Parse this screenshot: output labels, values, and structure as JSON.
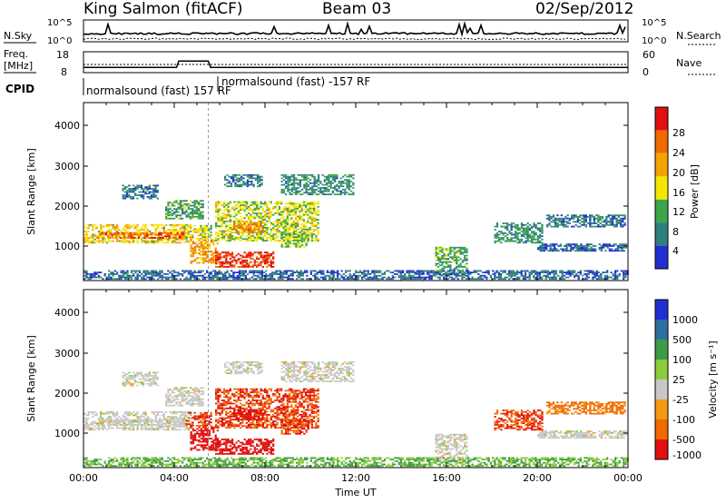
{
  "header": {
    "station": "King Salmon (fitACF)",
    "beam": "Beam 03",
    "date": "02/Sep/2012"
  },
  "noise_panel": {
    "left_label": "N.Sky",
    "right_label": "N.Search",
    "left_ticks": [
      "10^5",
      "10^0"
    ],
    "right_ticks": [
      "10^5",
      "10^0"
    ]
  },
  "freq_panel": {
    "left_label_1": "Freq.",
    "left_label_2": "[MHz]",
    "right_label": "Nave",
    "left_ticks": [
      "18",
      "8"
    ],
    "right_ticks": [
      "60",
      "0"
    ]
  },
  "cpid": {
    "label": "CPID",
    "program_1": "normalsound (fast) 157 RF",
    "program_2": "normalsound (fast) -157 RF"
  },
  "time_axis": {
    "label": "Time UT",
    "ticks": [
      "00:00",
      "04:00",
      "08:00",
      "12:00",
      "16:00",
      "20:00",
      "00:00"
    ]
  },
  "power_panel": {
    "ylabel": "Slant Range [km]",
    "yticks": [
      "1000",
      "2000",
      "3000",
      "4000"
    ],
    "colorbar_label": "Power [dB]",
    "colorbar_ticks": [
      "4",
      "8",
      "12",
      "16",
      "20",
      "24",
      "28"
    ]
  },
  "velocity_panel": {
    "ylabel": "Slant Range [km]",
    "yticks": [
      "1000",
      "2000",
      "3000",
      "4000"
    ],
    "colorbar_label": "Velocity [m s⁻¹]",
    "colorbar_ticks": [
      "1000",
      "500",
      "100",
      "25",
      "-25",
      "-100",
      "-500",
      "-1000"
    ]
  },
  "chart_data": {
    "type": "heatmap",
    "title": "King Salmon (fitACF)  Beam 03  02/Sep/2012",
    "xlabel": "Time UT",
    "x_unit": "hours UT",
    "xlim": [
      0,
      24
    ],
    "ylabel": "Slant Range [km]",
    "ylim": [
      180,
      4600
    ],
    "grid": false,
    "power_colors": [
      "#2030d0",
      "#2f7f7f",
      "#3aa54a",
      "#f5e600",
      "#f5a100",
      "#f06a00",
      "#e11010"
    ],
    "velocity_colors": [
      "#2030d0",
      "#2f6fa0",
      "#3d9a48",
      "#8acd3a",
      "#c8c8c8",
      "#f59a10",
      "#f06a00",
      "#e11010"
    ],
    "power_scale": {
      "label": "Power [dB]",
      "range": [
        0,
        30
      ]
    },
    "velocity_scale": {
      "label": "Velocity [m s-1]",
      "range": [
        -1000,
        1000
      ]
    },
    "programs": [
      {
        "name": "normalsound (fast) 157 RF",
        "start": 0,
        "end": 5.5
      },
      {
        "name": "normalsound (fast) -157 RF",
        "start": 5.5,
        "end": 24
      }
    ],
    "frequency_mhz": {
      "x": [
        0,
        4.1,
        4.2,
        5.5,
        5.6,
        24
      ],
      "y": [
        10.5,
        10.5,
        13.5,
        13.5,
        10.5,
        10.5
      ]
    },
    "scatter_regions": [
      {
        "t0": 0.0,
        "t1": 4.7,
        "r0": 1100,
        "r1": 1550,
        "power": 16,
        "velocity": 0
      },
      {
        "t0": 0.5,
        "t1": 4.5,
        "r0": 1220,
        "r1": 1350,
        "power": 24,
        "velocity": 0
      },
      {
        "t0": 3.6,
        "t1": 5.3,
        "r0": 1700,
        "r1": 2150,
        "power": 10,
        "velocity": 0
      },
      {
        "t0": 4.5,
        "t1": 5.6,
        "r0": 1200,
        "r1": 1550,
        "power": 14,
        "velocity": -300
      },
      {
        "t0": 4.7,
        "t1": 5.9,
        "r0": 600,
        "r1": 1200,
        "power": 20,
        "velocity": -500
      },
      {
        "t0": 5.8,
        "t1": 8.4,
        "r0": 500,
        "r1": 900,
        "power": 26,
        "velocity": -600
      },
      {
        "t0": 5.8,
        "t1": 10.3,
        "r0": 1150,
        "r1": 2150,
        "power": 14,
        "velocity": -300
      },
      {
        "t0": 6.6,
        "t1": 7.9,
        "r0": 1350,
        "r1": 1600,
        "power": 22,
        "velocity": -600
      },
      {
        "t0": 8.7,
        "t1": 9.9,
        "r0": 1000,
        "r1": 1400,
        "power": 12,
        "velocity": -300
      },
      {
        "t0": 1.7,
        "t1": 3.3,
        "r0": 2200,
        "r1": 2550,
        "power": 6,
        "velocity": 0
      },
      {
        "t0": 6.2,
        "t1": 7.9,
        "r0": 2500,
        "r1": 2800,
        "power": 6,
        "velocity": 0
      },
      {
        "t0": 8.7,
        "t1": 11.9,
        "r0": 2300,
        "r1": 2800,
        "power": 8,
        "velocity": 0
      },
      {
        "t0": 15.5,
        "t1": 16.9,
        "r0": 300,
        "r1": 1000,
        "power": 10,
        "velocity": 0
      },
      {
        "t0": 18.1,
        "t1": 20.2,
        "r0": 1100,
        "r1": 1600,
        "power": 8,
        "velocity": -300
      },
      {
        "t0": 20.4,
        "t1": 23.9,
        "r0": 1500,
        "r1": 1800,
        "power": 6,
        "velocity": -80
      },
      {
        "t0": 20.0,
        "t1": 23.9,
        "r0": 900,
        "r1": 1100,
        "power": 5,
        "velocity": 0
      },
      {
        "t0": 0.0,
        "t1": 24.0,
        "r0": 200,
        "r1": 420,
        "power": 5,
        "velocity": 60
      }
    ]
  }
}
